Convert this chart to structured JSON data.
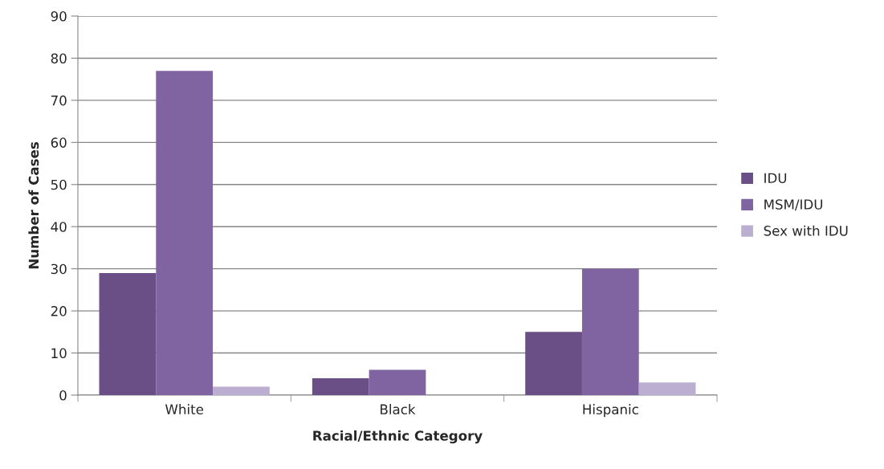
{
  "chart_data": {
    "type": "bar",
    "xlabel": "Racial/Ethnic Category",
    "ylabel": "Number of Cases",
    "categories": [
      "White",
      "Black",
      "Hispanic"
    ],
    "series": [
      {
        "name": "IDU",
        "color": "#6a4f87",
        "values": [
          29,
          4,
          15
        ]
      },
      {
        "name": "MSM/IDU",
        "color": "#8064a2",
        "values": [
          77,
          6,
          30
        ]
      },
      {
        "name": "Sex with IDU",
        "color": "#bcaed0",
        "values": [
          2,
          null,
          3
        ]
      }
    ],
    "ylim": [
      0,
      90
    ],
    "yticks": [
      0,
      10,
      20,
      30,
      40,
      50,
      60,
      70,
      80,
      90
    ],
    "grid": "y",
    "legend": "right"
  }
}
